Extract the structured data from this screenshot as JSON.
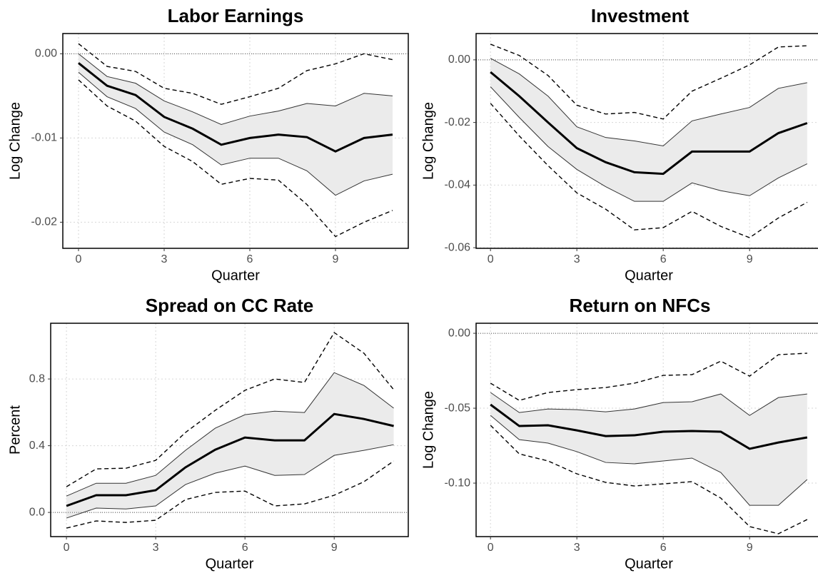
{
  "chart_data": [
    {
      "type": "line",
      "title": "Labor Earnings",
      "x_label": "Quarter",
      "y_label": "Log Change",
      "x": [
        0,
        1,
        2,
        3,
        4,
        5,
        6,
        7,
        8,
        9,
        10,
        11
      ],
      "xlim": [
        -0.55,
        11.55
      ],
      "xticks": [
        0,
        3,
        6,
        9
      ],
      "ylim": [
        -0.0231,
        0.0024
      ],
      "yticks": [
        {
          "value": 0,
          "label": "0.00"
        },
        -0.01,
        -0.02
      ],
      "grid": true,
      "reference_line": 0,
      "band_color": "#ebebeb",
      "series": [
        {
          "style": "estimate",
          "color": "#000000",
          "values": [
            -0.0011,
            -0.0038,
            -0.0049,
            -0.0075,
            -0.0089,
            -0.0108,
            -0.01,
            -0.0096,
            -0.0099,
            -0.0116,
            -0.01,
            -0.0096
          ]
        },
        {
          "style": "inner",
          "color": "#333333",
          "values": [
            0.0,
            -0.0027,
            -0.0035,
            -0.0056,
            -0.0069,
            -0.0084,
            -0.0074,
            -0.0068,
            -0.0059,
            -0.0062,
            -0.0047,
            -0.005
          ]
        },
        {
          "style": "inner",
          "color": "#333333",
          "values": [
            -0.0022,
            -0.0051,
            -0.0065,
            -0.0093,
            -0.0108,
            -0.0132,
            -0.0124,
            -0.0124,
            -0.0139,
            -0.0168,
            -0.0151,
            -0.0143
          ]
        },
        {
          "style": "outer",
          "color": "#000000",
          "values": [
            0.0012,
            -0.0015,
            -0.0021,
            -0.0041,
            -0.0047,
            -0.006,
            -0.0051,
            -0.0041,
            -0.002,
            -0.0012,
            0.0,
            -0.0007
          ]
        },
        {
          "style": "outer",
          "color": "#000000",
          "values": [
            -0.0031,
            -0.0062,
            -0.008,
            -0.011,
            -0.0128,
            -0.0155,
            -0.0148,
            -0.015,
            -0.0179,
            -0.0217,
            -0.02,
            -0.0186
          ]
        }
      ]
    },
    {
      "type": "line",
      "title": "Investment",
      "x_label": "Quarter",
      "y_label": "Log Change",
      "x": [
        0,
        1,
        2,
        3,
        4,
        5,
        6,
        7,
        8,
        9,
        10,
        11
      ],
      "xlim": [
        -0.5,
        11.5
      ],
      "xticks": [
        0,
        3,
        6,
        9
      ],
      "ylim": [
        -0.0602,
        0.0084
      ],
      "yticks": [
        {
          "value": 0,
          "label": "0.00"
        },
        -0.02,
        -0.04,
        -0.06
      ],
      "grid": true,
      "reference_line": 0,
      "band_color": "#ebebeb",
      "series": [
        {
          "style": "estimate",
          "color": "#000000",
          "values": [
            -0.0039,
            -0.0116,
            -0.02,
            -0.0282,
            -0.0327,
            -0.0359,
            -0.0364,
            -0.0293,
            -0.0293,
            -0.0293,
            -0.0234,
            -0.0202
          ]
        },
        {
          "style": "inner",
          "color": "#333333",
          "values": [
            0.0005,
            -0.0045,
            -0.0116,
            -0.0214,
            -0.0248,
            -0.0259,
            -0.0275,
            -0.0195,
            -0.0173,
            -0.0152,
            -0.0091,
            -0.0073
          ]
        },
        {
          "style": "inner",
          "color": "#333333",
          "values": [
            -0.0086,
            -0.0184,
            -0.0277,
            -0.035,
            -0.0405,
            -0.0452,
            -0.0452,
            -0.0393,
            -0.0418,
            -0.0434,
            -0.0377,
            -0.0332
          ]
        },
        {
          "style": "outer",
          "color": "#000000",
          "values": [
            0.005,
            0.0014,
            -0.005,
            -0.0145,
            -0.0173,
            -0.0168,
            -0.0189,
            -0.01,
            -0.0059,
            -0.0016,
            0.0041,
            0.0045
          ]
        },
        {
          "style": "outer",
          "color": "#000000",
          "values": [
            -0.0139,
            -0.0243,
            -0.0338,
            -0.0425,
            -0.0477,
            -0.0543,
            -0.0536,
            -0.0484,
            -0.0532,
            -0.0568,
            -0.0505,
            -0.0455
          ]
        }
      ]
    },
    {
      "type": "line",
      "title": "Spread on CC Rate",
      "x_label": "Quarter",
      "y_label": "Percent",
      "x": [
        0,
        1,
        2,
        3,
        4,
        5,
        6,
        7,
        8,
        9,
        10,
        11
      ],
      "xlim": [
        -0.53,
        11.49
      ],
      "xticks": [
        0,
        3,
        6,
        9
      ],
      "ylim": [
        -0.145,
        1.134
      ],
      "yticks": [
        {
          "value": 0,
          "label": "0.0"
        },
        0.4,
        0.8
      ],
      "grid": true,
      "reference_line": 0,
      "band_color": "#ebebeb",
      "series": [
        {
          "style": "estimate",
          "color": "#000000",
          "values": [
            0.039,
            0.103,
            0.103,
            0.133,
            0.27,
            0.376,
            0.449,
            0.432,
            0.432,
            0.59,
            0.56,
            0.518
          ]
        },
        {
          "style": "inner",
          "color": "#333333",
          "values": [
            0.098,
            0.175,
            0.175,
            0.222,
            0.372,
            0.505,
            0.586,
            0.607,
            0.599,
            0.838,
            0.761,
            0.625
          ]
        },
        {
          "style": "inner",
          "color": "#333333",
          "values": [
            -0.034,
            0.026,
            0.021,
            0.039,
            0.167,
            0.235,
            0.278,
            0.222,
            0.227,
            0.342,
            0.372,
            0.406
          ]
        },
        {
          "style": "outer",
          "color": "#000000",
          "values": [
            0.154,
            0.261,
            0.265,
            0.312,
            0.479,
            0.612,
            0.732,
            0.8,
            0.779,
            1.078,
            0.954,
            0.736
          ]
        },
        {
          "style": "outer",
          "color": "#000000",
          "values": [
            -0.094,
            -0.051,
            -0.06,
            -0.047,
            0.077,
            0.12,
            0.128,
            0.039,
            0.051,
            0.103,
            0.184,
            0.308
          ]
        }
      ]
    },
    {
      "type": "line",
      "title": "Return on NFCs",
      "x_label": "Quarter",
      "y_label": "Log Change",
      "x": [
        0,
        1,
        2,
        3,
        4,
        5,
        6,
        7,
        8,
        9,
        10,
        11
      ],
      "xlim": [
        -0.5,
        11.5
      ],
      "xticks": [
        0,
        3,
        6,
        9
      ],
      "ylim": [
        -0.1357,
        0.0067
      ],
      "yticks": [
        {
          "value": 0,
          "label": "0.00"
        },
        -0.05,
        {
          "value": -0.1,
          "label": "-0.10"
        }
      ],
      "grid": true,
      "reference_line": 0,
      "band_color": "#ebebeb",
      "series": [
        {
          "style": "estimate",
          "color": "#000000",
          "values": [
            -0.0476,
            -0.0619,
            -0.0614,
            -0.0648,
            -0.0686,
            -0.0681,
            -0.0657,
            -0.0652,
            -0.0657,
            -0.0771,
            -0.0729,
            -0.0695
          ]
        },
        {
          "style": "inner",
          "color": "#333333",
          "values": [
            -0.0395,
            -0.0529,
            -0.0505,
            -0.051,
            -0.0524,
            -0.0505,
            -0.0462,
            -0.0457,
            -0.0405,
            -0.0548,
            -0.0429,
            -0.0405
          ]
        },
        {
          "style": "inner",
          "color": "#333333",
          "values": [
            -0.0548,
            -0.071,
            -0.0733,
            -0.079,
            -0.0862,
            -0.0871,
            -0.0852,
            -0.0833,
            -0.0929,
            -0.1148,
            -0.1148,
            -0.0976
          ]
        },
        {
          "style": "outer",
          "color": "#000000",
          "values": [
            -0.0333,
            -0.0448,
            -0.0395,
            -0.0376,
            -0.0362,
            -0.0333,
            -0.0281,
            -0.0276,
            -0.0186,
            -0.0286,
            -0.0143,
            -0.0133
          ]
        },
        {
          "style": "outer",
          "color": "#000000",
          "values": [
            -0.0614,
            -0.0805,
            -0.0852,
            -0.0938,
            -0.0995,
            -0.1019,
            -0.1005,
            -0.099,
            -0.11,
            -0.129,
            -0.1338,
            -0.1243
          ]
        }
      ]
    }
  ]
}
